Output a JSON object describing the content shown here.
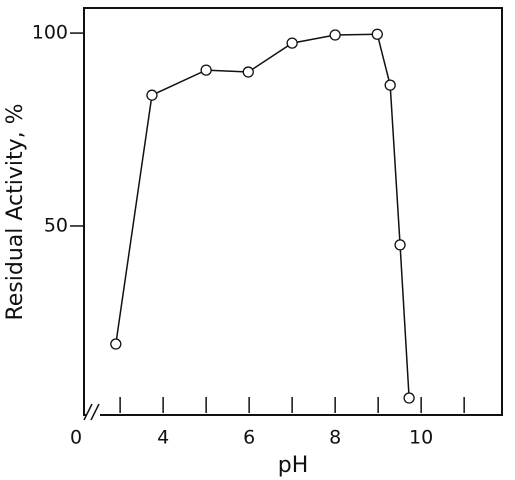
{
  "chart_data": {
    "type": "line",
    "xlabel": "pH",
    "ylabel": "Residual Activity, %",
    "x": [
      2.9,
      3.74,
      5.0,
      5.98,
      7.0,
      8.0,
      8.98,
      9.28,
      9.51,
      9.72
    ],
    "series": [
      {
        "color": "#111111",
        "values": [
          19.4,
          83.9,
          90.4,
          89.9,
          97.4,
          99.5,
          99.7,
          86.5,
          45.1,
          5.4
        ]
      }
    ],
    "xlim": [
      2.16,
      11.88
    ],
    "ylim": [
      1,
      106.5
    ],
    "xticks": [
      4,
      6,
      8,
      10
    ],
    "minor_xticks": [
      3,
      5,
      7,
      9,
      11
    ],
    "x_break_label": "0",
    "yticks": [
      50,
      100
    ]
  }
}
